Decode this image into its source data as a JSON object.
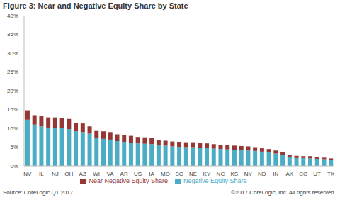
{
  "chart_data": {
    "type": "bar",
    "title": "Figure 3: Near and Negative Equity Share by State",
    "source": "Source: CoreLogic Q1 2017",
    "copyright": "©2017 CoreLogic, Inc. All rights reserved.",
    "categories": [
      "NV",
      null,
      "IL",
      null,
      "NJ",
      null,
      "OH",
      null,
      "AZ",
      null,
      "WI",
      null,
      "VA",
      null,
      "AR",
      null,
      "US",
      null,
      "IA",
      null,
      "MO",
      null,
      "SC",
      null,
      "NE",
      null,
      "KY",
      null,
      "NC",
      null,
      "KS",
      null,
      "NY",
      null,
      "ND",
      null,
      "IN",
      null,
      "AK",
      null,
      "CO",
      null,
      "UT",
      null,
      "TX"
    ],
    "series": [
      {
        "name": "Negative Equity Share",
        "color": "#4bacc6",
        "values": [
          12.3,
          11.0,
          10.5,
          10.2,
          10.1,
          10.0,
          9.8,
          9.2,
          9.0,
          8.6,
          7.4,
          7.2,
          7.0,
          6.6,
          6.4,
          6.2,
          6.0,
          5.9,
          5.8,
          5.5,
          5.4,
          5.2,
          5.1,
          5.0,
          5.0,
          4.9,
          4.8,
          4.6,
          4.5,
          4.4,
          4.3,
          4.2,
          4.1,
          4.0,
          3.8,
          3.6,
          3.3,
          2.9,
          2.4,
          2.1,
          2.1,
          2.0,
          1.9,
          1.8,
          1.6
        ]
      },
      {
        "name": "Near Negative Equity Share",
        "color": "#953735",
        "values": [
          2.5,
          2.5,
          2.7,
          2.7,
          2.8,
          2.8,
          2.7,
          2.3,
          2.3,
          1.9,
          1.9,
          2.0,
          2.0,
          1.8,
          1.8,
          1.8,
          1.7,
          1.7,
          1.6,
          1.4,
          1.3,
          1.3,
          1.3,
          1.3,
          1.3,
          1.3,
          1.2,
          1.2,
          1.1,
          1.1,
          1.1,
          1.1,
          1.1,
          1.0,
          0.9,
          0.9,
          0.8,
          0.7,
          0.6,
          0.6,
          0.5,
          0.6,
          0.5,
          0.4,
          0.4
        ]
      }
    ],
    "ylim": [
      0,
      40
    ],
    "yticks": [
      {
        "value": 0,
        "label": "0%"
      },
      {
        "value": 5,
        "label": "5%"
      },
      {
        "value": 10,
        "label": "10%"
      },
      {
        "value": 15,
        "label": "15%"
      },
      {
        "value": 20,
        "label": "20%"
      },
      {
        "value": 25,
        "label": "25%"
      },
      {
        "value": 30,
        "label": "30%"
      },
      {
        "value": 35,
        "label": "35%"
      },
      {
        "value": 40,
        "label": "40%"
      }
    ],
    "stacked": true,
    "grid": false,
    "legend": "bottom"
  }
}
